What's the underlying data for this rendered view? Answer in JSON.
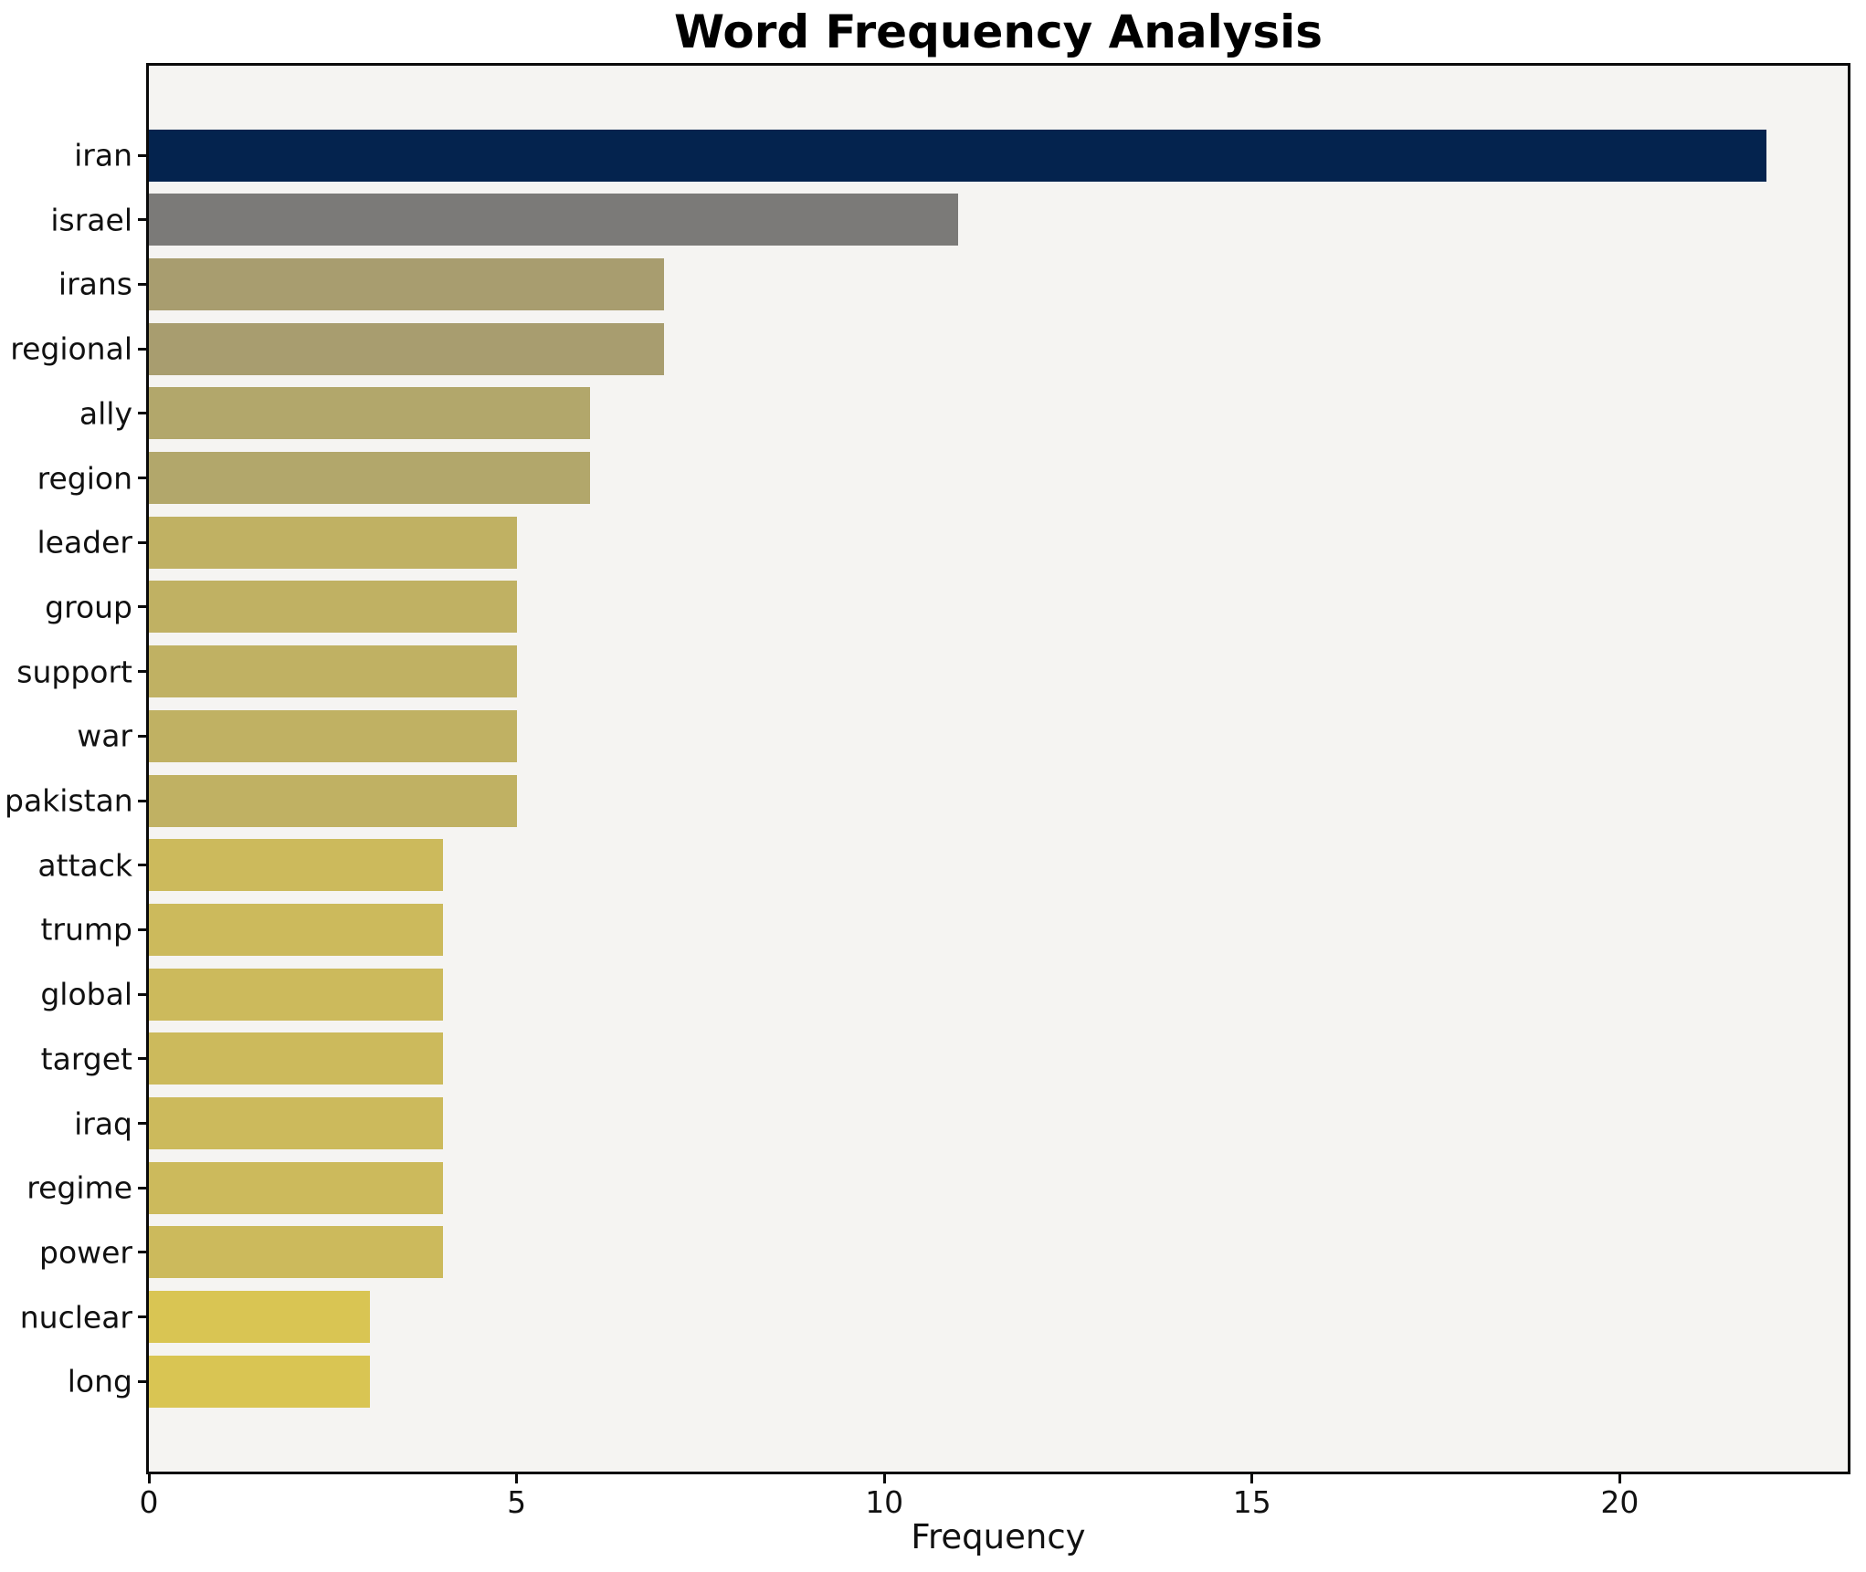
{
  "title": "Word Frequency Analysis",
  "chart_data": {
    "type": "bar",
    "orientation": "horizontal",
    "title": "Word Frequency Analysis",
    "xlabel": "Frequency",
    "ylabel": "",
    "categories": [
      "iran",
      "israel",
      "irans",
      "regional",
      "ally",
      "region",
      "leader",
      "group",
      "support",
      "war",
      "pakistan",
      "attack",
      "trump",
      "global",
      "target",
      "iraq",
      "regime",
      "power",
      "nuclear",
      "long"
    ],
    "values": [
      22,
      11,
      7,
      7,
      6,
      6,
      5,
      5,
      5,
      5,
      5,
      4,
      4,
      4,
      4,
      4,
      4,
      4,
      3,
      3
    ],
    "bar_colors": [
      "#04234e",
      "#7b7a78",
      "#a89d6f",
      "#a89d6f",
      "#b2a76b",
      "#b2a76b",
      "#c0b163",
      "#c0b163",
      "#c0b163",
      "#c0b163",
      "#c0b163",
      "#ccba5c",
      "#ccba5c",
      "#ccba5c",
      "#ccba5c",
      "#ccba5c",
      "#ccba5c",
      "#ccba5c",
      "#d9c553",
      "#d9c553"
    ],
    "xlim": [
      0,
      23.1
    ],
    "xticks": [
      0,
      5,
      10,
      15,
      20
    ],
    "xtick_labels": [
      "0",
      "5",
      "10",
      "15",
      "20"
    ],
    "grid": false,
    "legend": "none",
    "plot_background": "#f5f4f2",
    "outer_background": "#ffffff",
    "border_color": "#0a0a0a",
    "colormap_style": "cividis-by-value (high=dark navy, low=yellow)"
  }
}
